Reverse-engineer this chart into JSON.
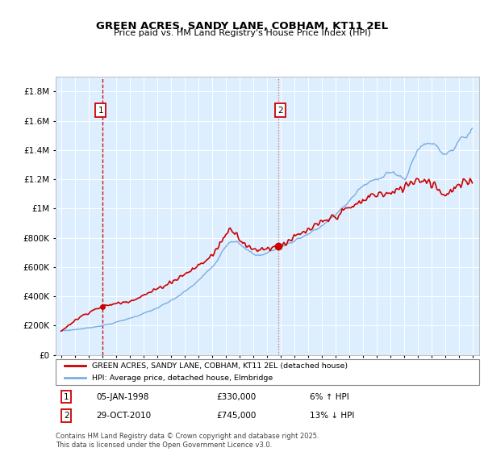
{
  "title": "GREEN ACRES, SANDY LANE, COBHAM, KT11 2EL",
  "subtitle": "Price paid vs. HM Land Registry's House Price Index (HPI)",
  "legend_red": "GREEN ACRES, SANDY LANE, COBHAM, KT11 2EL (detached house)",
  "legend_blue": "HPI: Average price, detached house, Elmbridge",
  "annotation1_date": "05-JAN-1998",
  "annotation1_price": "£330,000",
  "annotation1_hpi": "6% ↑ HPI",
  "annotation2_date": "29-OCT-2010",
  "annotation2_price": "£745,000",
  "annotation2_hpi": "13% ↓ HPI",
  "footer": "Contains HM Land Registry data © Crown copyright and database right 2025.\nThis data is licensed under the Open Government Licence v3.0.",
  "red_color": "#cc0000",
  "blue_color": "#7aade0",
  "vline1_color": "#cc0000",
  "vline2_color": "#cc6666",
  "bg_color": "#ddeeff",
  "annotation_box_color": "#cc0000",
  "ylim_min": 0,
  "ylim_max": 1900000,
  "t1_year": 1998.04,
  "t2_year": 2010.83,
  "sale1_value": 330000,
  "sale2_value": 745000
}
